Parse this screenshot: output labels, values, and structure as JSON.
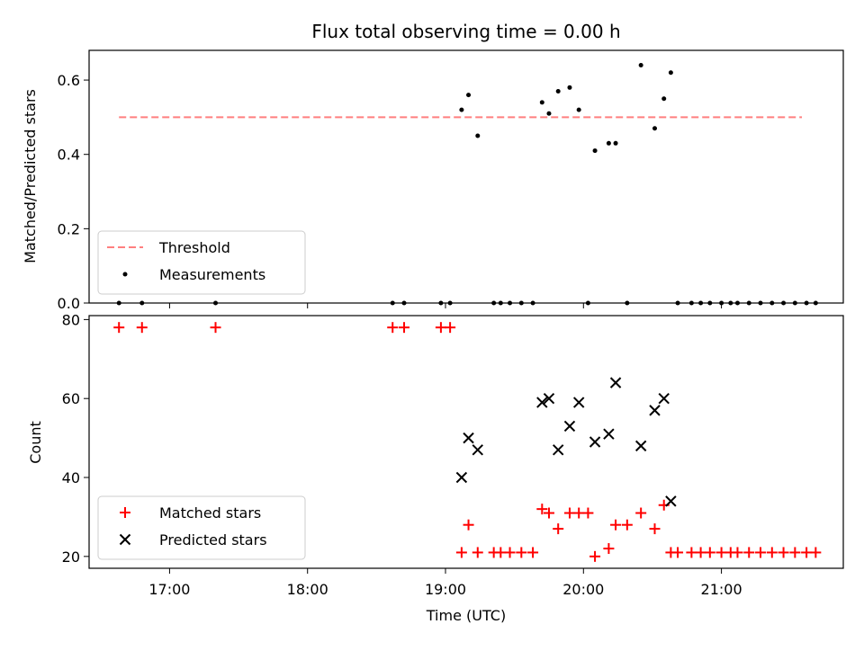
{
  "chart_data": [
    {
      "type": "scatter",
      "title": "Flux total observing time = 0.00 h",
      "xlabel": "",
      "ylabel": "Matched/Predicted stars",
      "xlim": [
        "16:25",
        "21:53"
      ],
      "ylim": [
        0,
        0.68
      ],
      "yticks": [
        "0.0",
        "0.2",
        "0.4",
        "0.6"
      ],
      "grid": false,
      "legend": "lower-left",
      "threshold": {
        "name": "Threshold",
        "value": 0.5,
        "x_start": "16:38",
        "x_end": "21:35",
        "color": "#ff7f7f",
        "style": "dashed"
      },
      "series": [
        {
          "name": "Measurements",
          "color": "#000000",
          "marker": "dot",
          "x": [
            "16:38",
            "16:48",
            "17:20",
            "18:37",
            "18:42",
            "18:58",
            "19:02",
            "19:07",
            "19:10",
            "19:14",
            "19:21",
            "19:24",
            "19:28",
            "19:33",
            "19:38",
            "19:42",
            "19:45",
            "19:49",
            "19:54",
            "19:58",
            "20:02",
            "20:05",
            "20:11",
            "20:14",
            "20:19",
            "20:25",
            "20:31",
            "20:35",
            "20:38",
            "20:41",
            "20:47",
            "20:51",
            "20:55",
            "21:00",
            "21:04",
            "21:07",
            "21:12",
            "21:17",
            "21:22",
            "21:27",
            "21:32",
            "21:37",
            "21:41"
          ],
          "y": [
            0,
            0,
            0,
            0,
            0,
            0,
            0,
            0.52,
            0.56,
            0.45,
            0,
            0,
            0,
            0,
            0,
            0.54,
            0.51,
            0.57,
            0.58,
            0.52,
            0,
            0.41,
            0.43,
            0.43,
            0,
            0.64,
            0.47,
            0.55,
            0.62,
            0,
            0,
            0,
            0,
            0,
            0,
            0,
            0,
            0,
            0,
            0,
            0,
            0,
            0
          ]
        }
      ]
    },
    {
      "type": "scatter",
      "title": "",
      "xlabel": "Time (UTC)",
      "ylabel": "Count",
      "xlim": [
        "16:25",
        "21:53"
      ],
      "ylim": [
        17,
        81
      ],
      "xticks": [
        "17:00",
        "18:00",
        "19:00",
        "20:00",
        "21:00"
      ],
      "yticks": [
        "20",
        "40",
        "60",
        "80"
      ],
      "grid": false,
      "legend": "lower-left",
      "series": [
        {
          "name": "Matched stars",
          "color": "#ff0000",
          "marker": "plus",
          "x": [
            "16:38",
            "16:48",
            "17:20",
            "18:37",
            "18:42",
            "18:58",
            "19:02",
            "19:07",
            "19:10",
            "19:14",
            "19:21",
            "19:24",
            "19:28",
            "19:33",
            "19:38",
            "19:42",
            "19:45",
            "19:49",
            "19:54",
            "19:58",
            "20:02",
            "20:05",
            "20:11",
            "20:14",
            "20:19",
            "20:25",
            "20:31",
            "20:35",
            "20:38",
            "20:41",
            "20:47",
            "20:51",
            "20:55",
            "21:00",
            "21:04",
            "21:07",
            "21:12",
            "21:17",
            "21:22",
            "21:27",
            "21:32",
            "21:37",
            "21:41"
          ],
          "y": [
            78,
            78,
            78,
            78,
            78,
            78,
            78,
            21,
            28,
            21,
            21,
            21,
            21,
            21,
            21,
            32,
            31,
            27,
            31,
            31,
            31,
            20,
            22,
            28,
            28,
            31,
            27,
            33,
            21,
            21,
            21,
            21,
            21,
            21,
            21,
            21,
            21,
            21,
            21,
            21,
            21,
            21,
            21
          ]
        },
        {
          "name": "Predicted stars",
          "color": "#000000",
          "marker": "x",
          "x": [
            "19:07",
            "19:10",
            "19:14",
            "19:42",
            "19:45",
            "19:49",
            "19:54",
            "19:58",
            "20:05",
            "20:11",
            "20:14",
            "20:25",
            "20:31",
            "20:35",
            "20:38"
          ],
          "y": [
            40,
            50,
            47,
            59,
            60,
            47,
            53,
            59,
            49,
            51,
            64,
            48,
            57,
            60,
            34
          ]
        }
      ]
    }
  ]
}
